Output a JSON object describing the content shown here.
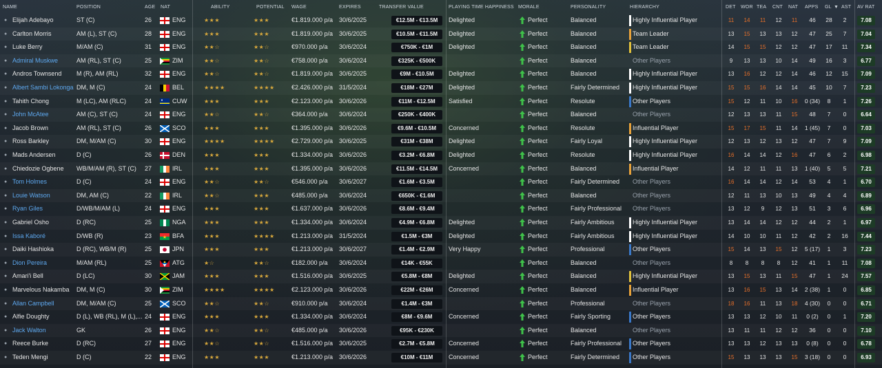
{
  "colors": {
    "link": "#5ea9f0",
    "star": "#d9a93c",
    "orange": "#e8702a",
    "yellow": "#e3c23c",
    "white": "#e6e6e6",
    "hbar_white": "#ffffff",
    "hbar_orange": "#e8a23a",
    "hbar_yellow": "#e3c23c",
    "hbar_blue": "#3a78c8",
    "morale_green": "#3fc24a"
  },
  "header": {
    "name": "NAME",
    "position": "POSITION",
    "age": "AGE",
    "nat": "NAT",
    "ability": "ABILITY",
    "potential": "POTENTIAL",
    "wage": "WAGE",
    "expires": "EXPIRES",
    "transfer_value": "TRANSFER VALUE",
    "playing_time": "PLAYING TIME HAPPINESS",
    "morale": "MORALE",
    "personality": "PERSONALITY",
    "hierarchy": "HIERARCHY",
    "det": "DET",
    "wor": "WOR",
    "tea": "TEA",
    "cnt": "CNT",
    "nat2": "NAT",
    "apps": "APPS",
    "gl": "GL",
    "ast": "AST",
    "avrat": "AV RAT"
  },
  "players": [
    {
      "name": "Elijah Adebayo",
      "link": false,
      "pos": "ST (C)",
      "age": "26",
      "nat": "ENG",
      "ability": "★★★",
      "potential": "★★★",
      "wage": "€1.819.000 p/a",
      "exp": "30/6/2025",
      "tv": "€12.5M - €13.5M",
      "pt": "Delighted",
      "morale": "Perfect",
      "pers": "Balanced",
      "hier": "Highly Influential Player",
      "hcol": "white",
      "det": "11",
      "wor": "14",
      "tea": "11",
      "cnt": "12",
      "nat2": "11",
      "apps": "46",
      "gl": "28",
      "ast": "2",
      "avr": "7.08",
      "detc": "orange",
      "worc": "orange",
      "teac": "orange",
      "cntc": "white",
      "natc": "orange"
    },
    {
      "name": "Carlton Morris",
      "link": false,
      "pos": "AM (L), ST (C)",
      "age": "28",
      "nat": "ENG",
      "ability": "★★★",
      "potential": "★★★",
      "wage": "€1.819.000 p/a",
      "exp": "30/6/2025",
      "tv": "€10.5M - €11.5M",
      "pt": "Delighted",
      "morale": "Perfect",
      "pers": "Balanced",
      "hier": "Team Leader",
      "hcol": "orange",
      "det": "13",
      "wor": "15",
      "tea": "13",
      "cnt": "13",
      "nat2": "12",
      "apps": "47",
      "gl": "25",
      "ast": "7",
      "avr": "7.04",
      "detc": "white",
      "worc": "orange",
      "teac": "white",
      "cntc": "white",
      "natc": "white"
    },
    {
      "name": "Luke Berry",
      "link": false,
      "pos": "M/AM (C)",
      "age": "31",
      "nat": "ENG",
      "ability": "★★☆",
      "potential": "★★☆",
      "wage": "€970.000 p/a",
      "exp": "30/6/2024",
      "tv": "€750K - €1M",
      "pt": "Delighted",
      "morale": "Perfect",
      "pers": "Balanced",
      "hier": "Team Leader",
      "hcol": "yellow",
      "det": "14",
      "wor": "15",
      "tea": "15",
      "cnt": "12",
      "nat2": "12",
      "apps": "47",
      "gl": "17",
      "ast": "11",
      "avr": "7.34",
      "detc": "white",
      "worc": "orange",
      "teac": "orange",
      "cntc": "white",
      "natc": "white"
    },
    {
      "name": "Admiral Muskwe",
      "link": true,
      "pos": "AM (RL), ST (C)",
      "age": "25",
      "nat": "ZIM",
      "ability": "★★☆",
      "potential": "★★☆",
      "wage": "€758.000 p/a",
      "exp": "30/6/2024",
      "tv": "€325K - €500K",
      "pt": "",
      "morale": "Perfect",
      "pers": "Balanced",
      "hier": "Other Players",
      "hcol": "none",
      "det": "9",
      "wor": "13",
      "tea": "13",
      "cnt": "10",
      "nat2": "14",
      "apps": "49",
      "gl": "16",
      "ast": "3",
      "avr": "6.77",
      "detc": "white",
      "worc": "white",
      "teac": "white",
      "cntc": "white",
      "natc": "white"
    },
    {
      "name": "Andros Townsend",
      "link": false,
      "pos": "M (R), AM (RL)",
      "age": "32",
      "nat": "ENG",
      "ability": "★★☆",
      "potential": "★★☆",
      "wage": "€1.819.000 p/a",
      "exp": "30/6/2025",
      "tv": "€9M - €10.5M",
      "pt": "Delighted",
      "morale": "Perfect",
      "pers": "Balanced",
      "hier": "Highly Influential Player",
      "hcol": "white",
      "det": "13",
      "wor": "16",
      "tea": "12",
      "cnt": "12",
      "nat2": "14",
      "apps": "46",
      "gl": "12",
      "ast": "15",
      "avr": "7.09",
      "detc": "white",
      "worc": "orange",
      "teac": "white",
      "cntc": "white",
      "natc": "white"
    },
    {
      "name": "Albert Sambi Lokonga",
      "link": true,
      "pos": "DM, M (C)",
      "age": "24",
      "nat": "BEL",
      "ability": "★★★★",
      "potential": "★★★★",
      "wage": "€2.426.000 p/a",
      "exp": "31/5/2024",
      "tv": "€18M - €27M",
      "pt": "Delighted",
      "morale": "Perfect",
      "pers": "Fairly Determined",
      "hier": "Highly Influential Player",
      "hcol": "white",
      "det": "15",
      "wor": "15",
      "tea": "16",
      "cnt": "14",
      "nat2": "14",
      "apps": "45",
      "gl": "10",
      "ast": "7",
      "avr": "7.23",
      "detc": "orange",
      "worc": "orange",
      "teac": "orange",
      "cntc": "white",
      "natc": "white"
    },
    {
      "name": "Tahith Chong",
      "link": false,
      "pos": "M (LC), AM (RLC)",
      "age": "24",
      "nat": "CUW",
      "ability": "★★★",
      "potential": "★★★",
      "wage": "€2.123.000 p/a",
      "exp": "30/6/2026",
      "tv": "€11M - €12.5M",
      "pt": "Satisfied",
      "morale": "Perfect",
      "pers": "Resolute",
      "hier": "Other Players",
      "hcol": "blue",
      "det": "15",
      "wor": "12",
      "tea": "11",
      "cnt": "10",
      "nat2": "16",
      "apps": "0 (34)",
      "gl": "8",
      "ast": "1",
      "avr": "7.26",
      "detc": "orange",
      "worc": "white",
      "teac": "white",
      "cntc": "white",
      "natc": "orange"
    },
    {
      "name": "John McAtee",
      "link": true,
      "pos": "AM (C), ST (C)",
      "age": "24",
      "nat": "ENG",
      "ability": "★★☆",
      "potential": "★★☆",
      "wage": "€364.000 p/a",
      "exp": "30/6/2024",
      "tv": "€250K - €400K",
      "pt": "",
      "morale": "Perfect",
      "pers": "Balanced",
      "hier": "Other Players",
      "hcol": "none",
      "det": "12",
      "wor": "13",
      "tea": "13",
      "cnt": "11",
      "nat2": "15",
      "apps": "48",
      "gl": "7",
      "ast": "0",
      "avr": "6.64",
      "detc": "white",
      "worc": "white",
      "teac": "white",
      "cntc": "white",
      "natc": "orange"
    },
    {
      "name": "Jacob Brown",
      "link": false,
      "pos": "AM (RL), ST (C)",
      "age": "26",
      "nat": "SCO",
      "ability": "★★★",
      "potential": "★★★",
      "wage": "€1.395.000 p/a",
      "exp": "30/6/2026",
      "tv": "€9.6M - €10.5M",
      "pt": "Concerned",
      "morale": "Perfect",
      "pers": "Resolute",
      "hier": "Influential Player",
      "hcol": "orange",
      "det": "15",
      "wor": "17",
      "tea": "15",
      "cnt": "11",
      "nat2": "14",
      "apps": "1 (45)",
      "gl": "7",
      "ast": "0",
      "avr": "7.03",
      "detc": "orange",
      "worc": "orange",
      "teac": "orange",
      "cntc": "white",
      "natc": "white"
    },
    {
      "name": "Ross Barkley",
      "link": false,
      "pos": "DM, M/AM (C)",
      "age": "30",
      "nat": "ENG",
      "ability": "★★★★",
      "potential": "★★★★",
      "wage": "€2.729.000 p/a",
      "exp": "30/6/2025",
      "tv": "€31M - €38M",
      "pt": "Delighted",
      "morale": "Perfect",
      "pers": "Fairly Loyal",
      "hier": "Highly Influential Player",
      "hcol": "white",
      "det": "12",
      "wor": "13",
      "tea": "12",
      "cnt": "13",
      "nat2": "12",
      "apps": "47",
      "gl": "7",
      "ast": "9",
      "avr": "7.09",
      "detc": "white",
      "worc": "white",
      "teac": "white",
      "cntc": "white",
      "natc": "white"
    },
    {
      "name": "Mads Andersen",
      "link": false,
      "pos": "D (C)",
      "age": "26",
      "nat": "DEN",
      "ability": "★★★",
      "potential": "★★★",
      "wage": "€1.334.000 p/a",
      "exp": "30/6/2026",
      "tv": "€3.2M - €6.8M",
      "pt": "Delighted",
      "morale": "Perfect",
      "pers": "Resolute",
      "hier": "Highly Influential Player",
      "hcol": "white",
      "det": "16",
      "wor": "14",
      "tea": "14",
      "cnt": "12",
      "nat2": "16",
      "apps": "47",
      "gl": "6",
      "ast": "2",
      "avr": "6.98",
      "detc": "orange",
      "worc": "white",
      "teac": "white",
      "cntc": "white",
      "natc": "orange"
    },
    {
      "name": "Chiedozie Ogbene",
      "link": false,
      "pos": "WB/M/AM (R), ST (C)",
      "age": "27",
      "nat": "IRL",
      "ability": "★★★",
      "potential": "★★★",
      "wage": "€1.395.000 p/a",
      "exp": "30/6/2026",
      "tv": "€11.5M - €14.5M",
      "pt": "Concerned",
      "morale": "Perfect",
      "pers": "Balanced",
      "hier": "Influential Player",
      "hcol": "orange",
      "det": "14",
      "wor": "12",
      "tea": "11",
      "cnt": "11",
      "nat2": "13",
      "apps": "1 (40)",
      "gl": "5",
      "ast": "5",
      "avr": "7.21",
      "detc": "white",
      "worc": "white",
      "teac": "white",
      "cntc": "white",
      "natc": "white"
    },
    {
      "name": "Tom Holmes",
      "link": true,
      "pos": "D (C)",
      "age": "24",
      "nat": "ENG",
      "ability": "★★☆",
      "potential": "★★☆",
      "wage": "€546.000 p/a",
      "exp": "30/6/2027",
      "tv": "€1.6M - €3.5M",
      "pt": "",
      "morale": "Perfect",
      "pers": "Fairly Determined",
      "hier": "Other Players",
      "hcol": "none",
      "det": "16",
      "wor": "14",
      "tea": "14",
      "cnt": "12",
      "nat2": "14",
      "apps": "53",
      "gl": "4",
      "ast": "1",
      "avr": "6.70",
      "detc": "orange",
      "worc": "white",
      "teac": "white",
      "cntc": "white",
      "natc": "white"
    },
    {
      "name": "Louie Watson",
      "link": true,
      "pos": "DM, AM (C)",
      "age": "22",
      "nat": "IRL",
      "ability": "★★☆",
      "potential": "★★★",
      "wage": "€485.000 p/a",
      "exp": "30/6/2024",
      "tv": "€650K - €1.6M",
      "pt": "",
      "morale": "Perfect",
      "pers": "Balanced",
      "hier": "Other Players",
      "hcol": "none",
      "det": "12",
      "wor": "11",
      "tea": "13",
      "cnt": "10",
      "nat2": "13",
      "apps": "49",
      "gl": "4",
      "ast": "4",
      "avr": "6.89",
      "detc": "white",
      "worc": "white",
      "teac": "white",
      "cntc": "white",
      "natc": "white"
    },
    {
      "name": "Ryan Giles",
      "link": true,
      "pos": "D/WB/M/AM (L)",
      "age": "24",
      "nat": "ENG",
      "ability": "★★★",
      "potential": "★★★",
      "wage": "€1.637.000 p/a",
      "exp": "30/6/2026",
      "tv": "€8.6M - €9.4M",
      "pt": "",
      "morale": "Perfect",
      "pers": "Fairly Professional",
      "hier": "Other Players",
      "hcol": "none",
      "det": "13",
      "wor": "12",
      "tea": "9",
      "cnt": "12",
      "nat2": "13",
      "apps": "51",
      "gl": "3",
      "ast": "6",
      "avr": "6.96",
      "detc": "white",
      "worc": "white",
      "teac": "white",
      "cntc": "white",
      "natc": "white"
    },
    {
      "name": "Gabriel Osho",
      "link": false,
      "pos": "D (RC)",
      "age": "25",
      "nat": "NGA",
      "ability": "★★★",
      "potential": "★★★",
      "wage": "€1.334.000 p/a",
      "exp": "30/6/2024",
      "tv": "€4.9M - €6.8M",
      "pt": "Delighted",
      "morale": "Perfect",
      "pers": "Fairly Ambitious",
      "hier": "Highly Influential Player",
      "hcol": "white",
      "det": "13",
      "wor": "14",
      "tea": "14",
      "cnt": "12",
      "nat2": "12",
      "apps": "44",
      "gl": "2",
      "ast": "1",
      "avr": "6.97",
      "detc": "white",
      "worc": "white",
      "teac": "white",
      "cntc": "white",
      "natc": "white"
    },
    {
      "name": "Issa Kaboré",
      "link": true,
      "pos": "D/WB (R)",
      "age": "23",
      "nat": "BFA",
      "ability": "★★★",
      "potential": "★★★★",
      "wage": "€1.213.000 p/a",
      "exp": "31/5/2024",
      "tv": "€1.5M - €3M",
      "pt": "Delighted",
      "morale": "Perfect",
      "pers": "Fairly Ambitious",
      "hier": "Highly Influential Player",
      "hcol": "white",
      "det": "14",
      "wor": "10",
      "tea": "10",
      "cnt": "11",
      "nat2": "12",
      "apps": "42",
      "gl": "2",
      "ast": "16",
      "avr": "7.44",
      "detc": "white",
      "worc": "white",
      "teac": "white",
      "cntc": "white",
      "natc": "white"
    },
    {
      "name": "Daiki Hashioka",
      "link": false,
      "pos": "D (RC), WB/M (R)",
      "age": "25",
      "nat": "JPN",
      "ability": "★★★",
      "potential": "★★★",
      "wage": "€1.213.000 p/a",
      "exp": "30/6/2027",
      "tv": "€1.4M - €2.9M",
      "pt": "Very Happy",
      "morale": "Perfect",
      "pers": "Professional",
      "hier": "Other Players",
      "hcol": "blue",
      "det": "15",
      "wor": "14",
      "tea": "13",
      "cnt": "15",
      "nat2": "12",
      "apps": "5 (17)",
      "gl": "1",
      "ast": "3",
      "avr": "7.23",
      "detc": "orange",
      "worc": "white",
      "teac": "white",
      "cntc": "orange",
      "natc": "white"
    },
    {
      "name": "Dion Pereira",
      "link": true,
      "pos": "M/AM (RL)",
      "age": "25",
      "nat": "ATG",
      "ability": "★☆",
      "potential": "★★☆",
      "wage": "€182.000 p/a",
      "exp": "30/6/2024",
      "tv": "€14K - €55K",
      "pt": "",
      "morale": "Perfect",
      "pers": "Balanced",
      "hier": "Other Players",
      "hcol": "none",
      "det": "8",
      "wor": "8",
      "tea": "8",
      "cnt": "8",
      "nat2": "12",
      "apps": "41",
      "gl": "1",
      "ast": "11",
      "avr": "7.08",
      "detc": "white",
      "worc": "white",
      "teac": "white",
      "cntc": "white",
      "natc": "white"
    },
    {
      "name": "Amari'i Bell",
      "link": false,
      "pos": "D (LC)",
      "age": "30",
      "nat": "JAM",
      "ability": "★★★",
      "potential": "★★★",
      "wage": "€1.516.000 p/a",
      "exp": "30/6/2025",
      "tv": "€5.8M - €8M",
      "pt": "Delighted",
      "morale": "Perfect",
      "pers": "Balanced",
      "hier": "Highly Influential Player",
      "hcol": "yellow",
      "det": "13",
      "wor": "15",
      "tea": "13",
      "cnt": "11",
      "nat2": "15",
      "apps": "47",
      "gl": "1",
      "ast": "24",
      "avr": "7.57",
      "detc": "white",
      "worc": "orange",
      "teac": "white",
      "cntc": "white",
      "natc": "orange"
    },
    {
      "name": "Marvelous Nakamba",
      "link": false,
      "pos": "DM, M (C)",
      "age": "30",
      "nat": "ZIM",
      "ability": "★★★★",
      "potential": "★★★★",
      "wage": "€2.123.000 p/a",
      "exp": "30/6/2026",
      "tv": "€22M - €26M",
      "pt": "Concerned",
      "morale": "Perfect",
      "pers": "Balanced",
      "hier": "Influential Player",
      "hcol": "orange",
      "det": "13",
      "wor": "16",
      "tea": "15",
      "cnt": "13",
      "nat2": "14",
      "apps": "2 (38)",
      "gl": "1",
      "ast": "0",
      "avr": "6.85",
      "detc": "white",
      "worc": "orange",
      "teac": "orange",
      "cntc": "white",
      "natc": "white"
    },
    {
      "name": "Allan Campbell",
      "link": true,
      "pos": "DM, M/AM (C)",
      "age": "25",
      "nat": "SCO",
      "ability": "★★☆",
      "potential": "★★☆",
      "wage": "€910.000 p/a",
      "exp": "30/6/2024",
      "tv": "€1.4M - €3M",
      "pt": "",
      "morale": "Perfect",
      "pers": "Professional",
      "hier": "Other Players",
      "hcol": "none",
      "det": "18",
      "wor": "16",
      "tea": "11",
      "cnt": "13",
      "nat2": "18",
      "apps": "4 (30)",
      "gl": "0",
      "ast": "0",
      "avr": "6.71",
      "detc": "orange",
      "worc": "orange",
      "teac": "white",
      "cntc": "white",
      "natc": "orange"
    },
    {
      "name": "Alfie Doughty",
      "link": false,
      "pos": "D (L), WB (RL), M (L),...",
      "age": "24",
      "nat": "ENG",
      "ability": "★★★",
      "potential": "★★★",
      "wage": "€1.334.000 p/a",
      "exp": "30/6/2024",
      "tv": "€8M - €9.6M",
      "pt": "Concerned",
      "morale": "Perfect",
      "pers": "Fairly Sporting",
      "hier": "Other Players",
      "hcol": "blue",
      "det": "13",
      "wor": "13",
      "tea": "12",
      "cnt": "10",
      "nat2": "11",
      "apps": "0 (2)",
      "gl": "0",
      "ast": "1",
      "avr": "7.20",
      "detc": "white",
      "worc": "white",
      "teac": "white",
      "cntc": "white",
      "natc": "white"
    },
    {
      "name": "Jack Walton",
      "link": true,
      "pos": "GK",
      "age": "26",
      "nat": "ENG",
      "ability": "★★☆",
      "potential": "★★☆",
      "wage": "€485.000 p/a",
      "exp": "30/6/2026",
      "tv": "€95K - €230K",
      "pt": "",
      "morale": "Perfect",
      "pers": "Balanced",
      "hier": "Other Players",
      "hcol": "none",
      "det": "13",
      "wor": "11",
      "tea": "11",
      "cnt": "12",
      "nat2": "12",
      "apps": "36",
      "gl": "0",
      "ast": "0",
      "avr": "7.10",
      "detc": "white",
      "worc": "white",
      "teac": "white",
      "cntc": "white",
      "natc": "white"
    },
    {
      "name": "Reece Burke",
      "link": false,
      "pos": "D (RC)",
      "age": "27",
      "nat": "ENG",
      "ability": "★★☆",
      "potential": "★★☆",
      "wage": "€1.516.000 p/a",
      "exp": "30/6/2025",
      "tv": "€2.7M - €5.8M",
      "pt": "Concerned",
      "morale": "Perfect",
      "pers": "Fairly Professional",
      "hier": "Other Players",
      "hcol": "blue",
      "det": "13",
      "wor": "13",
      "tea": "12",
      "cnt": "13",
      "nat2": "13",
      "apps": "0 (8)",
      "gl": "0",
      "ast": "0",
      "avr": "6.78",
      "detc": "white",
      "worc": "white",
      "teac": "white",
      "cntc": "white",
      "natc": "white"
    },
    {
      "name": "Teden Mengi",
      "link": false,
      "pos": "D (C)",
      "age": "22",
      "nat": "ENG",
      "ability": "★★★",
      "potential": "★★★",
      "wage": "€1.213.000 p/a",
      "exp": "30/6/2026",
      "tv": "€10M - €11M",
      "pt": "Concerned",
      "morale": "Perfect",
      "pers": "Fairly Determined",
      "hier": "Other Players",
      "hcol": "blue",
      "det": "15",
      "wor": "13",
      "tea": "13",
      "cnt": "13",
      "nat2": "15",
      "apps": "3 (18)",
      "gl": "0",
      "ast": "0",
      "avr": "6.93",
      "detc": "orange",
      "worc": "white",
      "teac": "white",
      "cntc": "white",
      "natc": "orange"
    }
  ]
}
